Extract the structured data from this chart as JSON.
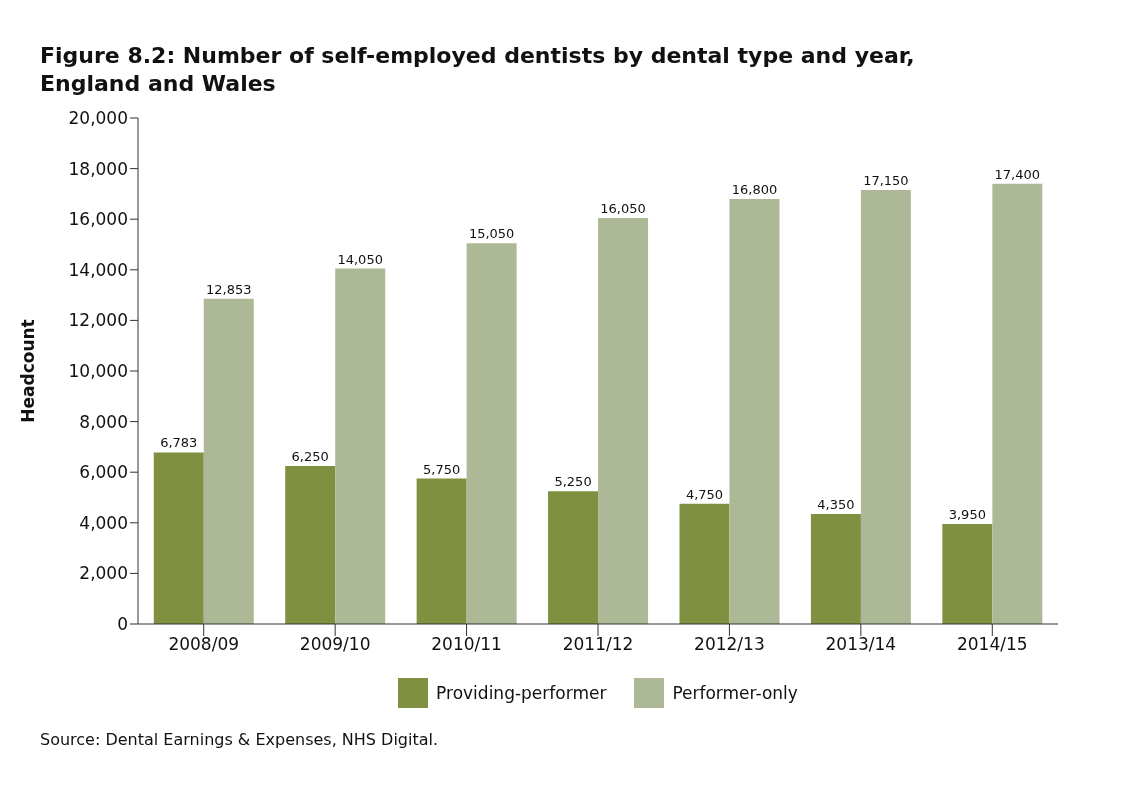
{
  "chart_data": {
    "type": "bar",
    "title": "Figure 8.2: Number of self-employed dentists by dental type and year, England and Wales",
    "ylabel": "Headcount",
    "categories": [
      "2008/09",
      "2009/10",
      "2010/11",
      "2011/12",
      "2012/13",
      "2013/14",
      "2014/15"
    ],
    "series": [
      {
        "name": "Providing-performer",
        "color": "#7f9141",
        "values": [
          6783,
          6250,
          5750,
          5250,
          4750,
          4350,
          3950
        ],
        "value_labels": [
          "6,783",
          "6,250",
          "5,750",
          "5,250",
          "4,750",
          "4,350",
          "3,950"
        ]
      },
      {
        "name": "Performer-only",
        "color": "#adb996",
        "values": [
          12853,
          14050,
          15050,
          16050,
          16800,
          17150,
          17400
        ],
        "value_labels": [
          "12,853",
          "14,050",
          "15,050",
          "16,050",
          "16,800",
          "17,150",
          "17,400"
        ]
      }
    ],
    "ylim": [
      0,
      20000
    ],
    "yticks": [
      {
        "value": 0,
        "label": "0"
      },
      {
        "value": 2000,
        "label": "2,000"
      },
      {
        "value": 4000,
        "label": "4,000"
      },
      {
        "value": 6000,
        "label": "6,000"
      },
      {
        "value": 8000,
        "label": "8,000"
      },
      {
        "value": 10000,
        "label": "10,000"
      },
      {
        "value": 12000,
        "label": "12,000"
      },
      {
        "value": 14000,
        "label": "14,000"
      },
      {
        "value": 16000,
        "label": "16,000"
      },
      {
        "value": 18000,
        "label": "18,000"
      },
      {
        "value": 20000,
        "label": "20,000"
      }
    ],
    "grid": false,
    "legend": "bottom",
    "annotations": [
      "Source: Dental Earnings & Expenses, NHS Digital."
    ]
  }
}
